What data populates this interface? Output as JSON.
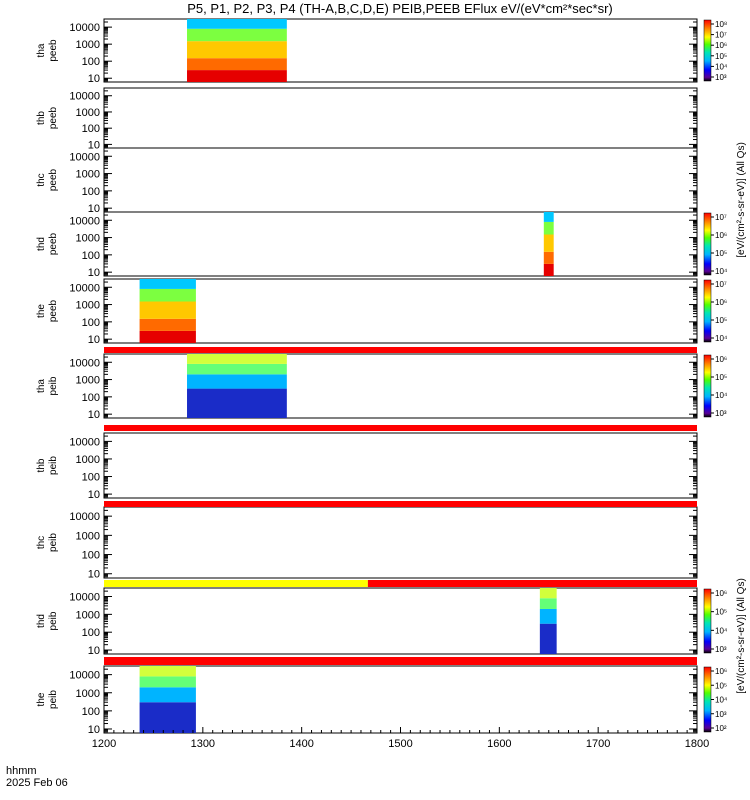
{
  "chart_data": {
    "type": "heatmap",
    "title": "P5, P1, P2, P3, P4 (TH-A,B,C,D,E) PEIB,PEEB EFlux eV/(eV*cm²*sec*sr)",
    "xaxis": {
      "ticks": [
        "1200",
        "1300",
        "1400",
        "1500",
        "1600",
        "1700",
        "1800"
      ],
      "range": [
        1200,
        1800
      ],
      "label_line1": "hhmm",
      "label_line2": "2025 Feb 06"
    },
    "yaxis": {
      "scale": "log",
      "range": [
        6,
        30000
      ],
      "ticks": [
        "10",
        "100",
        "1000",
        "10000"
      ]
    },
    "panels": [
      {
        "id": "tha_peeb",
        "label1": "tha",
        "label2": "peeb",
        "data_ranges": [
          [
            1284,
            1385
          ]
        ],
        "colorbar": {
          "ticks": [
            "10³",
            "10⁴",
            "10⁵",
            "10⁶",
            "10⁷",
            "10⁸"
          ],
          "decades": [
            3,
            8
          ]
        }
      },
      {
        "id": "thb_peeb",
        "label1": "thb",
        "label2": "peeb",
        "data_ranges": [],
        "colorbar": null
      },
      {
        "id": "thc_peeb",
        "label1": "thc",
        "label2": "peeb",
        "data_ranges": [],
        "colorbar": null
      },
      {
        "id": "thd_peeb",
        "label1": "thd",
        "label2": "peeb",
        "data_ranges": [
          [
            1645,
            1655
          ]
        ],
        "colorbar": {
          "ticks": [
            "10⁴",
            "10⁵",
            "10⁶",
            "10⁷"
          ],
          "decades": [
            4,
            7
          ]
        }
      },
      {
        "id": "the_peeb",
        "label1": "the",
        "label2": "peeb",
        "data_ranges": [
          [
            1236,
            1293
          ]
        ],
        "colorbar": {
          "ticks": [
            "10⁴",
            "10⁵",
            "10⁶",
            "10⁷"
          ],
          "decades": [
            4,
            7
          ]
        }
      },
      {
        "id": "tha_peib",
        "label1": "tha",
        "label2": "peib",
        "data_ranges": [
          [
            1284,
            1385
          ]
        ],
        "colorbar": {
          "ticks": [
            "10³",
            "10⁴",
            "10⁵",
            "10⁶"
          ],
          "decades": [
            3,
            6
          ]
        }
      },
      {
        "id": "thb_peib",
        "label1": "thb",
        "label2": "peib",
        "data_ranges": [],
        "colorbar": null
      },
      {
        "id": "thc_peib",
        "label1": "thc",
        "label2": "peib",
        "data_ranges": [],
        "colorbar": null
      },
      {
        "id": "thd_peib",
        "label1": "thd",
        "label2": "peib",
        "data_ranges": [
          [
            1641,
            1658
          ]
        ],
        "colorbar": {
          "ticks": [
            "10³",
            "10⁴",
            "10⁵",
            "10⁶"
          ],
          "decades": [
            3,
            6
          ]
        }
      },
      {
        "id": "the_peib",
        "label1": "the",
        "label2": "peib",
        "data_ranges": [
          [
            1236,
            1293
          ]
        ],
        "colorbar": {
          "ticks": [
            "10²",
            "10³",
            "10⁴",
            "10⁵",
            "10⁶"
          ],
          "decades": [
            2,
            6
          ]
        }
      }
    ],
    "status_bars": [
      {
        "segments": [
          {
            "from": 1200,
            "to": 1800,
            "color": "#ff0000"
          }
        ]
      },
      {
        "segments": [
          {
            "from": 1200,
            "to": 1800,
            "color": "#ff0000"
          }
        ]
      },
      {
        "segments": [
          {
            "from": 1200,
            "to": 1800,
            "color": "#ff0000"
          }
        ]
      },
      {
        "segments": [
          {
            "from": 1200,
            "to": 1467,
            "color": "#ffff00"
          },
          {
            "from": 1467,
            "to": 1800,
            "color": "#ff0000"
          }
        ]
      },
      {
        "segments": [
          {
            "from": 1200,
            "to": 1800,
            "color": "#ff0000"
          }
        ]
      }
    ],
    "colorbar_unit": "[eV/(cm²-s-sr-eV)] (All Qs)",
    "grid": false
  }
}
